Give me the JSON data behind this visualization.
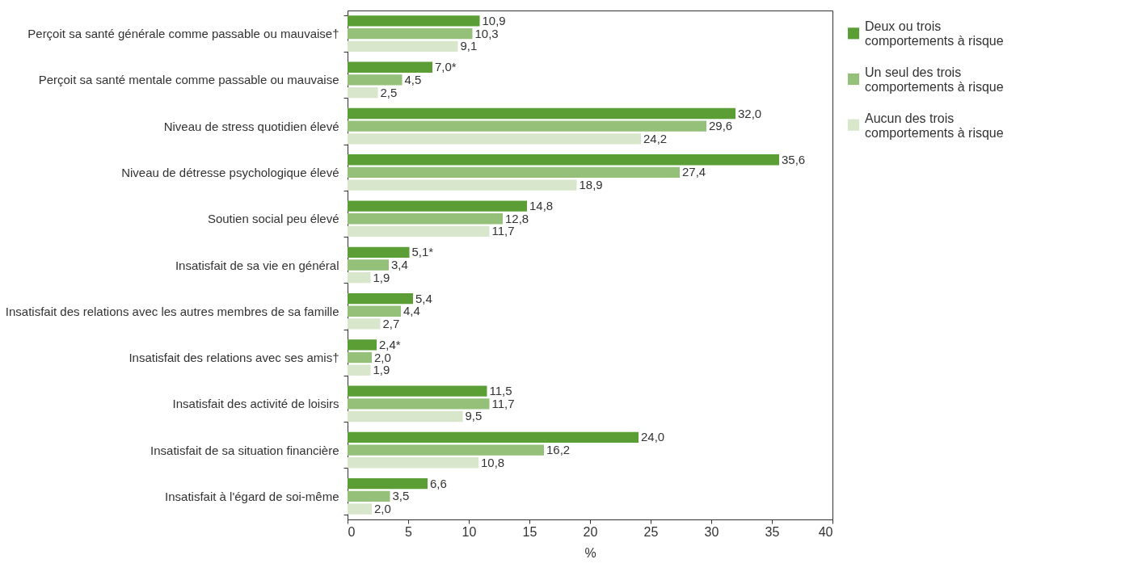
{
  "chart_data": {
    "type": "bar",
    "orientation": "horizontal",
    "xlabel": "%",
    "categories": [
      "Perçoit sa santé générale comme passable ou mauvaise†",
      "Perçoit sa santé mentale comme passable ou mauvaise",
      "Niveau de stress quotidien élevé",
      "Niveau de détresse psychologique élevé",
      "Soutien social peu élevé",
      "Insatisfait de sa vie en général",
      "Insatisfait des relations avec les autres membres de sa famille",
      "Insatisfait des relations avec ses amis†",
      "Insatisfait des activité de loisirs",
      "Insatisfait de sa situation financière",
      "Insatisfait à l'égard de soi-même"
    ],
    "series": [
      {
        "name": "Deux ou trois comportements à risque",
        "color": "#5a9e35",
        "values": [
          10.9,
          7.0,
          32.0,
          35.6,
          14.8,
          5.1,
          5.4,
          2.4,
          11.5,
          24.0,
          6.6
        ],
        "value_labels": [
          "10,9",
          "7,0*",
          "32,0",
          "35,6",
          "14,8",
          "5,1*",
          "5,4",
          "2,4*",
          "11,5",
          "24,0",
          "6,6"
        ]
      },
      {
        "name": "Un seul des trois comportements à risque",
        "color": "#95c07a",
        "values": [
          10.3,
          4.5,
          29.6,
          27.4,
          12.8,
          3.4,
          4.4,
          2.0,
          11.7,
          16.2,
          3.5
        ],
        "value_labels": [
          "10,3",
          "4,5",
          "29,6",
          "27,4",
          "12,8",
          "3,4",
          "4,4",
          "2,0",
          "11,7",
          "16,2",
          "3,5"
        ]
      },
      {
        "name": "Aucun des trois comportements à risque",
        "color": "#d8e6cc",
        "values": [
          9.1,
          2.5,
          24.2,
          18.9,
          11.7,
          1.9,
          2.7,
          1.9,
          9.5,
          10.8,
          2.0
        ],
        "value_labels": [
          "9,1",
          "2,5",
          "24,2",
          "18,9",
          "11,7",
          "1,9",
          "2,7",
          "1,9",
          "9,5",
          "10,8",
          "2,0"
        ]
      }
    ],
    "xlim": [
      0,
      40
    ],
    "xticks": [
      0,
      5,
      10,
      15,
      20,
      25,
      30,
      35,
      40
    ],
    "grid": false,
    "legend": "right"
  }
}
